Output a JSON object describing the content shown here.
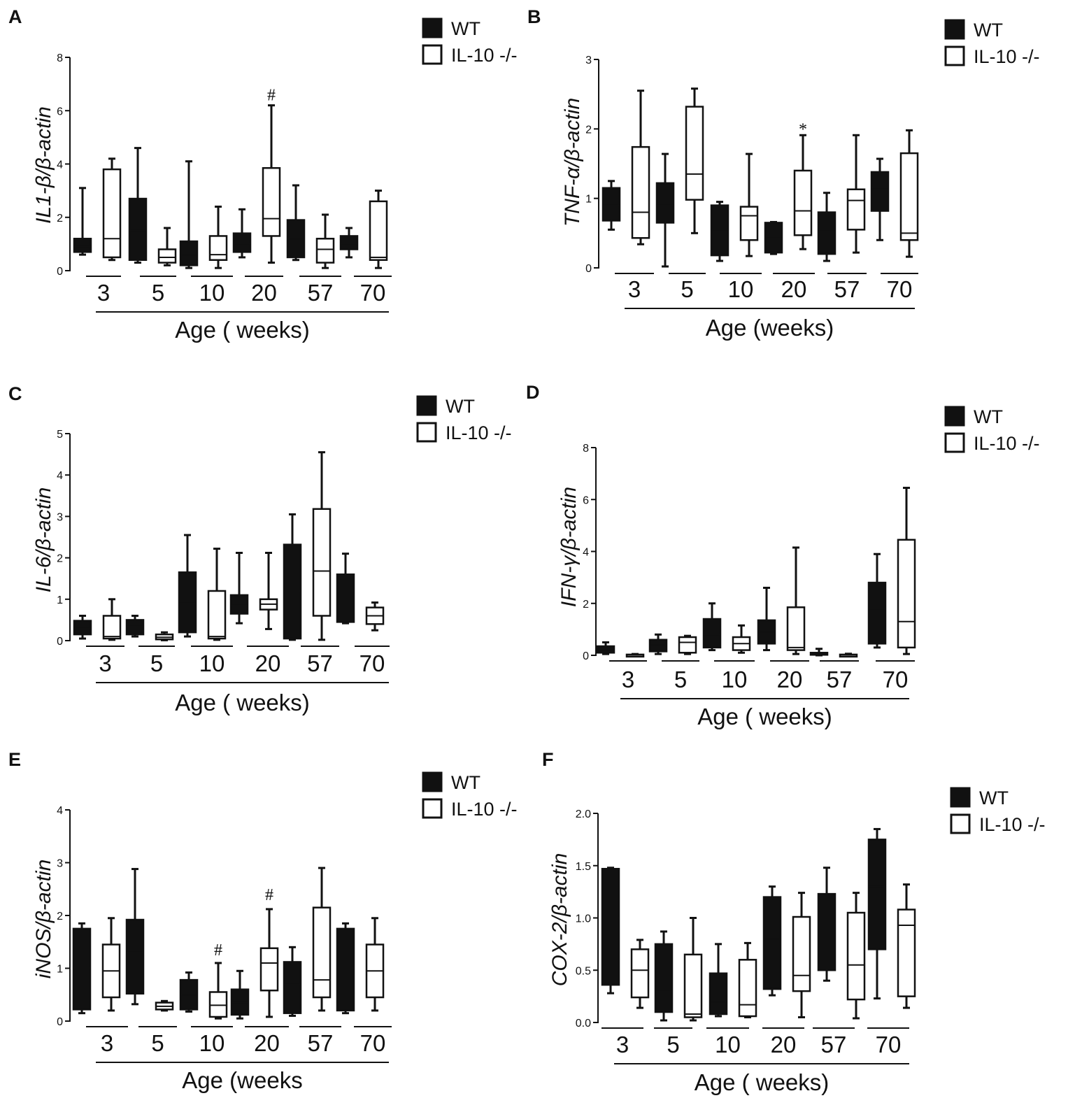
{
  "figure": {
    "description_label": "Cytokine expression box plots"
  },
  "chart_data": [
    {
      "panel": "A",
      "type": "box",
      "ylabel": "IL1-β/β-actin",
      "xlabel": "Age ( weeks)",
      "categories": [
        "3",
        "5",
        "10",
        "20",
        "57",
        "70"
      ],
      "yticks": [
        "0",
        "2",
        "4",
        "6",
        "8"
      ],
      "ylim": [
        0,
        8
      ],
      "legend": [
        "WT",
        "IL-10 -/-"
      ],
      "series": [
        {
          "name": "WT",
          "boxes": [
            {
              "min": 0.6,
              "q1": 0.7,
              "med": 0.9,
              "q3": 1.2,
              "max": 3.1
            },
            {
              "min": 0.3,
              "q1": 0.4,
              "med": 1.5,
              "q3": 2.7,
              "max": 4.6
            },
            {
              "min": 0.1,
              "q1": 0.2,
              "med": 0.6,
              "q3": 1.1,
              "max": 4.1
            },
            {
              "min": 0.5,
              "q1": 0.7,
              "med": 1.0,
              "q3": 1.4,
              "max": 2.3
            },
            {
              "min": 0.4,
              "q1": 0.5,
              "med": 1.2,
              "q3": 1.9,
              "max": 3.2
            },
            {
              "min": 0.5,
              "q1": 0.8,
              "med": 1.0,
              "q3": 1.3,
              "max": 1.6
            }
          ]
        },
        {
          "name": "IL-10 -/-",
          "boxes": [
            {
              "min": 0.4,
              "q1": 0.5,
              "med": 1.2,
              "q3": 3.8,
              "max": 4.2
            },
            {
              "min": 0.2,
              "q1": 0.3,
              "med": 0.5,
              "q3": 0.8,
              "max": 1.6
            },
            {
              "min": 0.1,
              "q1": 0.4,
              "med": 0.6,
              "q3": 1.3,
              "max": 2.4
            },
            {
              "min": 0.3,
              "q1": 1.3,
              "med": 1.95,
              "q3": 3.85,
              "max": 6.2
            },
            {
              "min": 0.1,
              "q1": 0.3,
              "med": 0.8,
              "q3": 1.2,
              "max": 2.1
            },
            {
              "min": 0.1,
              "q1": 0.4,
              "med": 0.5,
              "q3": 2.6,
              "max": 3.0
            }
          ]
        }
      ],
      "annotations": [
        {
          "text": "#",
          "category": "20",
          "series": "IL-10 -/-",
          "y": 6.6
        }
      ]
    },
    {
      "panel": "B",
      "type": "box",
      "ylabel": "TNF-α/β-actin",
      "xlabel": "Age (weeks)",
      "categories": [
        "3",
        "5",
        "10",
        "20",
        "57",
        "70"
      ],
      "yticks": [
        "0",
        "1",
        "2",
        "3"
      ],
      "ylim": [
        0,
        3
      ],
      "legend": [
        "WT",
        "IL-10 -/-"
      ],
      "series": [
        {
          "name": "WT",
          "boxes": [
            {
              "min": 0.55,
              "q1": 0.68,
              "med": 0.9,
              "q3": 1.15,
              "max": 1.25
            },
            {
              "min": 0.02,
              "q1": 0.65,
              "med": 0.9,
              "q3": 1.22,
              "max": 1.64
            },
            {
              "min": 0.1,
              "q1": 0.18,
              "med": 0.55,
              "q3": 0.9,
              "max": 0.95
            },
            {
              "min": 0.2,
              "q1": 0.22,
              "med": 0.45,
              "q3": 0.65,
              "max": 0.66
            },
            {
              "min": 0.1,
              "q1": 0.2,
              "med": 0.55,
              "q3": 0.8,
              "max": 1.08
            },
            {
              "min": 0.4,
              "q1": 0.82,
              "med": 1.15,
              "q3": 1.38,
              "max": 1.57
            }
          ]
        },
        {
          "name": "IL-10 -/-",
          "boxes": [
            {
              "min": 0.34,
              "q1": 0.43,
              "med": 0.8,
              "q3": 1.74,
              "max": 2.55
            },
            {
              "min": 0.5,
              "q1": 0.98,
              "med": 1.35,
              "q3": 2.32,
              "max": 2.58
            },
            {
              "min": 0.17,
              "q1": 0.4,
              "med": 0.75,
              "q3": 0.88,
              "max": 1.64
            },
            {
              "min": 0.27,
              "q1": 0.47,
              "med": 0.82,
              "q3": 1.4,
              "max": 1.91
            },
            {
              "min": 0.22,
              "q1": 0.55,
              "med": 0.97,
              "q3": 1.13,
              "max": 1.91
            },
            {
              "min": 0.16,
              "q1": 0.4,
              "med": 0.5,
              "q3": 1.65,
              "max": 1.98
            }
          ]
        }
      ],
      "annotations": [
        {
          "text": "*",
          "category": "20",
          "series": "IL-10 -/-",
          "y": 2.0
        }
      ]
    },
    {
      "panel": "C",
      "type": "box",
      "ylabel": "IL-6/β-actin",
      "xlabel": "Age ( weeks)",
      "categories": [
        "3",
        "5",
        "10",
        "20",
        "57",
        "70"
      ],
      "yticks": [
        "0",
        "1",
        "2",
        "3",
        "4",
        "5"
      ],
      "ylim": [
        0,
        5
      ],
      "legend": [
        "WT",
        "IL-10 -/-"
      ],
      "series": [
        {
          "name": "WT",
          "boxes": [
            {
              "min": 0.05,
              "q1": 0.15,
              "med": 0.3,
              "q3": 0.48,
              "max": 0.6
            },
            {
              "min": 0.1,
              "q1": 0.15,
              "med": 0.35,
              "q3": 0.5,
              "max": 0.6
            },
            {
              "min": 0.1,
              "q1": 0.2,
              "med": 0.9,
              "q3": 1.65,
              "max": 2.55
            },
            {
              "min": 0.42,
              "q1": 0.65,
              "med": 0.85,
              "q3": 1.1,
              "max": 2.12
            },
            {
              "min": 0.02,
              "q1": 0.05,
              "med": 1.2,
              "q3": 2.32,
              "max": 3.05
            },
            {
              "min": 0.42,
              "q1": 0.45,
              "med": 1.2,
              "q3": 1.6,
              "max": 2.1
            }
          ]
        },
        {
          "name": "IL-10 -/-",
          "boxes": [
            {
              "min": 0.02,
              "q1": 0.05,
              "med": 0.1,
              "q3": 0.6,
              "max": 1.0
            },
            {
              "min": 0.01,
              "q1": 0.03,
              "med": 0.08,
              "q3": 0.15,
              "max": 0.2
            },
            {
              "min": 0.02,
              "q1": 0.05,
              "med": 0.1,
              "q3": 1.2,
              "max": 2.22
            },
            {
              "min": 0.28,
              "q1": 0.75,
              "med": 0.88,
              "q3": 1.0,
              "max": 2.12
            },
            {
              "min": 0.02,
              "q1": 0.6,
              "med": 1.68,
              "q3": 3.18,
              "max": 4.55
            },
            {
              "min": 0.25,
              "q1": 0.4,
              "med": 0.6,
              "q3": 0.8,
              "max": 0.92
            }
          ]
        }
      ],
      "annotations": []
    },
    {
      "panel": "D",
      "type": "box",
      "ylabel": "IFN-γ/β-actin",
      "xlabel": "Age ( weeks)",
      "categories": [
        "3",
        "5",
        "10",
        "20",
        "57",
        "70"
      ],
      "yticks": [
        "0",
        "2",
        "4",
        "6",
        "8"
      ],
      "ylim": [
        0,
        8
      ],
      "legend": [
        "WT",
        "IL-10 -/-"
      ],
      "series": [
        {
          "name": "WT",
          "boxes": [
            {
              "min": 0.05,
              "q1": 0.1,
              "med": 0.2,
              "q3": 0.35,
              "max": 0.5
            },
            {
              "min": 0.05,
              "q1": 0.15,
              "med": 0.4,
              "q3": 0.6,
              "max": 0.8
            },
            {
              "min": 0.2,
              "q1": 0.3,
              "med": 0.8,
              "q3": 1.4,
              "max": 2.0
            },
            {
              "min": 0.2,
              "q1": 0.45,
              "med": 0.9,
              "q3": 1.35,
              "max": 2.6
            },
            {
              "min": 0.0,
              "q1": 0.02,
              "med": 0.05,
              "q3": 0.1,
              "max": 0.25
            },
            {
              "min": 0.3,
              "q1": 0.45,
              "med": 1.8,
              "q3": 2.8,
              "max": 3.9
            }
          ]
        },
        {
          "name": "IL-10 -/-",
          "boxes": [
            {
              "min": 0.0,
              "q1": 0.01,
              "med": 0.02,
              "q3": 0.03,
              "max": 0.05
            },
            {
              "min": 0.05,
              "q1": 0.1,
              "med": 0.5,
              "q3": 0.7,
              "max": 0.75
            },
            {
              "min": 0.1,
              "q1": 0.2,
              "med": 0.45,
              "q3": 0.7,
              "max": 1.15
            },
            {
              "min": 0.05,
              "q1": 0.2,
              "med": 0.3,
              "q3": 1.85,
              "max": 4.15
            },
            {
              "min": 0.0,
              "q1": 0.01,
              "med": 0.02,
              "q3": 0.03,
              "max": 0.06
            },
            {
              "min": 0.05,
              "q1": 0.3,
              "med": 1.3,
              "q3": 4.45,
              "max": 6.45
            }
          ]
        }
      ],
      "annotations": []
    },
    {
      "panel": "E",
      "type": "box",
      "ylabel": "iNOS/β-actin",
      "xlabel": "Age (weeks",
      "categories": [
        "3",
        "5",
        "10",
        "20",
        "57",
        "70"
      ],
      "yticks": [
        "0",
        "1",
        "2",
        "3",
        "4"
      ],
      "ylim": [
        0,
        4
      ],
      "legend": [
        "WT",
        "IL-10 -/-"
      ],
      "series": [
        {
          "name": "WT",
          "boxes": [
            {
              "min": 0.15,
              "q1": 0.22,
              "med": 1.0,
              "q3": 1.75,
              "max": 1.85
            },
            {
              "min": 0.32,
              "q1": 0.52,
              "med": 1.3,
              "q3": 1.92,
              "max": 2.88
            },
            {
              "min": 0.18,
              "q1": 0.22,
              "med": 0.5,
              "q3": 0.78,
              "max": 0.92
            },
            {
              "min": 0.05,
              "q1": 0.12,
              "med": 0.35,
              "q3": 0.6,
              "max": 0.95
            },
            {
              "min": 0.1,
              "q1": 0.15,
              "med": 0.7,
              "q3": 1.12,
              "max": 1.4
            },
            {
              "min": 0.15,
              "q1": 0.2,
              "med": 1.0,
              "q3": 1.75,
              "max": 1.85
            }
          ]
        },
        {
          "name": "IL-10 -/-",
          "boxes": [
            {
              "min": 0.2,
              "q1": 0.45,
              "med": 0.95,
              "q3": 1.45,
              "max": 1.95
            },
            {
              "min": 0.2,
              "q1": 0.22,
              "med": 0.28,
              "q3": 0.35,
              "max": 0.38
            },
            {
              "min": 0.05,
              "q1": 0.08,
              "med": 0.3,
              "q3": 0.55,
              "max": 1.1
            },
            {
              "min": 0.08,
              "q1": 0.58,
              "med": 1.1,
              "q3": 1.38,
              "max": 2.12
            },
            {
              "min": 0.2,
              "q1": 0.45,
              "med": 0.78,
              "q3": 2.15,
              "max": 2.9
            },
            {
              "min": 0.2,
              "q1": 0.45,
              "med": 0.95,
              "q3": 1.45,
              "max": 1.95
            }
          ]
        }
      ],
      "annotations": [
        {
          "text": "#",
          "category": "10",
          "series": "IL-10 -/-",
          "y": 1.35
        },
        {
          "text": "#",
          "category": "20",
          "series": "IL-10 -/-",
          "y": 2.4
        }
      ]
    },
    {
      "panel": "F",
      "type": "box",
      "ylabel": "COX-2/β-actin",
      "xlabel": "Age ( weeks)",
      "categories": [
        "3",
        "5",
        "10",
        "20",
        "57",
        "70"
      ],
      "yticks": [
        "0.0",
        "0.5",
        "1.0",
        "1.5",
        "2.0"
      ],
      "ylim": [
        0,
        2
      ],
      "legend": [
        "WT",
        "IL-10 -/-"
      ],
      "series": [
        {
          "name": "WT",
          "boxes": [
            {
              "min": 0.28,
              "q1": 0.36,
              "med": 1.0,
              "q3": 1.47,
              "max": 1.48
            },
            {
              "min": 0.02,
              "q1": 0.1,
              "med": 0.3,
              "q3": 0.75,
              "max": 0.87
            },
            {
              "min": 0.06,
              "q1": 0.08,
              "med": 0.2,
              "q3": 0.47,
              "max": 0.75
            },
            {
              "min": 0.26,
              "q1": 0.32,
              "med": 0.8,
              "q3": 1.2,
              "max": 1.3
            },
            {
              "min": 0.4,
              "q1": 0.5,
              "med": 0.95,
              "q3": 1.23,
              "max": 1.48
            },
            {
              "min": 0.23,
              "q1": 0.7,
              "med": 1.3,
              "q3": 1.75,
              "max": 1.85
            }
          ]
        },
        {
          "name": "IL-10 -/-",
          "boxes": [
            {
              "min": 0.14,
              "q1": 0.24,
              "med": 0.5,
              "q3": 0.7,
              "max": 0.79
            },
            {
              "min": 0.02,
              "q1": 0.05,
              "med": 0.08,
              "q3": 0.65,
              "max": 1.0
            },
            {
              "min": 0.05,
              "q1": 0.06,
              "med": 0.17,
              "q3": 0.6,
              "max": 0.76
            },
            {
              "min": 0.05,
              "q1": 0.3,
              "med": 0.45,
              "q3": 1.01,
              "max": 1.24
            },
            {
              "min": 0.04,
              "q1": 0.22,
              "med": 0.55,
              "q3": 1.05,
              "max": 1.24
            },
            {
              "min": 0.14,
              "q1": 0.25,
              "med": 0.93,
              "q3": 1.08,
              "max": 1.32
            }
          ]
        }
      ],
      "annotations": []
    }
  ]
}
